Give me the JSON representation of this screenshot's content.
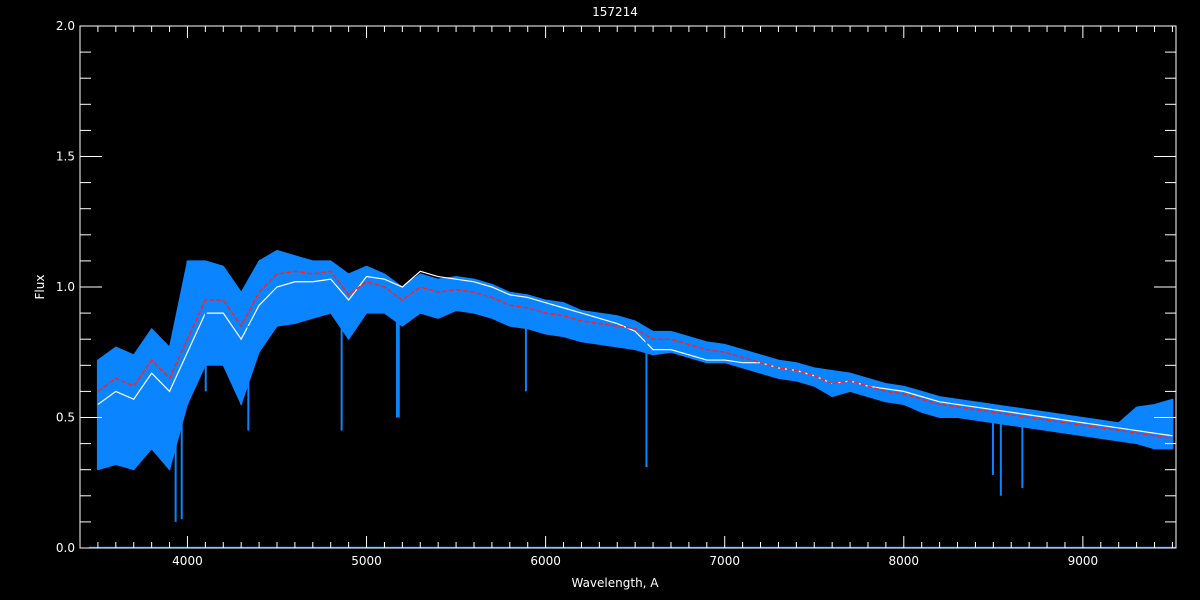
{
  "chart_data": {
    "type": "line",
    "title": "157214",
    "xlabel": "Wavelength, A",
    "ylabel": "Flux",
    "xlim": [
      3400,
      9520
    ],
    "ylim": [
      0,
      2.0
    ],
    "xticks": [
      4000,
      5000,
      6000,
      7000,
      8000,
      9000
    ],
    "xtick_labels": [
      "4000",
      "5000",
      "6000",
      "7000",
      "8000",
      "9000"
    ],
    "yticks": [
      0,
      0.5,
      1.0,
      1.5,
      2.0
    ],
    "ytick_labels": [
      "0.0",
      "0.5",
      "1.0",
      "1.5",
      "2.0"
    ],
    "x_minor_step": 100,
    "y_minor_step": 0.1,
    "grid": false,
    "background": "#000000",
    "x": [
      3500,
      3600,
      3700,
      3800,
      3900,
      4000,
      4100,
      4200,
      4300,
      4400,
      4500,
      4600,
      4700,
      4800,
      4900,
      5000,
      5100,
      5200,
      5300,
      5400,
      5500,
      5600,
      5700,
      5800,
      5900,
      6000,
      6100,
      6200,
      6300,
      6400,
      6500,
      6600,
      6700,
      6800,
      6900,
      7000,
      7100,
      7200,
      7300,
      7400,
      7500,
      7600,
      7700,
      7800,
      7900,
      8000,
      8100,
      8200,
      8300,
      8400,
      8500,
      8600,
      8700,
      8800,
      8900,
      9000,
      9100,
      9200,
      9300,
      9400,
      9500
    ],
    "series": [
      {
        "color": "#ffffff",
        "style": "solid",
        "values": [
          0.55,
          0.6,
          0.57,
          0.67,
          0.6,
          0.75,
          0.9,
          0.9,
          0.8,
          0.93,
          1.0,
          1.02,
          1.02,
          1.03,
          0.95,
          1.04,
          1.03,
          1.0,
          1.06,
          1.04,
          1.03,
          1.02,
          1.0,
          0.97,
          0.96,
          0.94,
          0.92,
          0.9,
          0.88,
          0.86,
          0.83,
          0.76,
          0.76,
          0.74,
          0.72,
          0.72,
          0.71,
          0.71,
          0.69,
          0.68,
          0.66,
          0.63,
          0.64,
          0.62,
          0.61,
          0.6,
          0.58,
          0.56,
          0.55,
          0.54,
          0.53,
          0.52,
          0.51,
          0.5,
          0.49,
          0.48,
          0.47,
          0.46,
          0.45,
          0.44,
          0.43
        ]
      },
      {
        "color": "#0a84ff",
        "style": "band",
        "upper": [
          0.72,
          0.77,
          0.74,
          0.84,
          0.77,
          1.1,
          1.1,
          1.08,
          0.98,
          1.1,
          1.14,
          1.12,
          1.1,
          1.1,
          1.05,
          1.08,
          1.05,
          1.0,
          1.05,
          1.03,
          1.04,
          1.03,
          1.01,
          0.98,
          0.97,
          0.95,
          0.94,
          0.91,
          0.9,
          0.89,
          0.87,
          0.83,
          0.83,
          0.81,
          0.79,
          0.78,
          0.76,
          0.74,
          0.72,
          0.71,
          0.69,
          0.68,
          0.67,
          0.65,
          0.63,
          0.62,
          0.6,
          0.58,
          0.57,
          0.56,
          0.55,
          0.54,
          0.53,
          0.52,
          0.51,
          0.5,
          0.49,
          0.48,
          0.54,
          0.55,
          0.57
        ],
        "lower": [
          0.3,
          0.32,
          0.3,
          0.38,
          0.3,
          0.55,
          0.7,
          0.7,
          0.55,
          0.75,
          0.85,
          0.86,
          0.88,
          0.9,
          0.8,
          0.9,
          0.9,
          0.85,
          0.9,
          0.88,
          0.91,
          0.9,
          0.88,
          0.85,
          0.84,
          0.82,
          0.81,
          0.79,
          0.78,
          0.77,
          0.76,
          0.74,
          0.75,
          0.73,
          0.71,
          0.71,
          0.69,
          0.67,
          0.65,
          0.64,
          0.62,
          0.58,
          0.6,
          0.58,
          0.56,
          0.55,
          0.52,
          0.5,
          0.5,
          0.49,
          0.48,
          0.47,
          0.46,
          0.45,
          0.44,
          0.43,
          0.42,
          0.41,
          0.4,
          0.38,
          0.38
        ]
      },
      {
        "color": "#ff2020",
        "style": "dashed",
        "values": [
          0.6,
          0.65,
          0.62,
          0.72,
          0.65,
          0.8,
          0.95,
          0.95,
          0.85,
          0.98,
          1.05,
          1.06,
          1.05,
          1.06,
          0.97,
          1.02,
          1.0,
          0.95,
          1.0,
          0.98,
          0.99,
          0.98,
          0.96,
          0.93,
          0.92,
          0.9,
          0.89,
          0.87,
          0.86,
          0.85,
          0.84,
          0.8,
          0.8,
          0.78,
          0.76,
          0.75,
          0.73,
          0.71,
          0.69,
          0.68,
          0.66,
          0.63,
          0.64,
          0.62,
          0.6,
          0.59,
          0.57,
          0.55,
          0.54,
          0.53,
          0.52,
          0.51,
          0.5,
          0.49,
          0.48,
          0.47,
          0.46,
          0.45,
          0.44,
          0.43,
          0.42
        ]
      }
    ],
    "absorption_lines": [
      {
        "x": 3934,
        "min": 0.1,
        "top": 0.6
      },
      {
        "x": 3968,
        "min": 0.11,
        "top": 0.6
      },
      {
        "x": 4102,
        "min": 0.6,
        "top": 0.95
      },
      {
        "x": 4340,
        "min": 0.45,
        "top": 0.85
      },
      {
        "x": 4861,
        "min": 0.45,
        "top": 0.97
      },
      {
        "x": 5170,
        "min": 0.5,
        "top": 0.95
      },
      {
        "x": 5180,
        "min": 0.5,
        "top": 0.95
      },
      {
        "x": 5890,
        "min": 0.6,
        "top": 0.92
      },
      {
        "x": 6563,
        "min": 0.31,
        "top": 0.82
      },
      {
        "x": 7605,
        "min": 0.58,
        "top": 0.64
      },
      {
        "x": 8498,
        "min": 0.28,
        "top": 0.52
      },
      {
        "x": 8542,
        "min": 0.2,
        "top": 0.52
      },
      {
        "x": 8662,
        "min": 0.23,
        "top": 0.51
      }
    ],
    "baseline": {
      "color": "#0a84ff",
      "value": 0.0
    }
  }
}
